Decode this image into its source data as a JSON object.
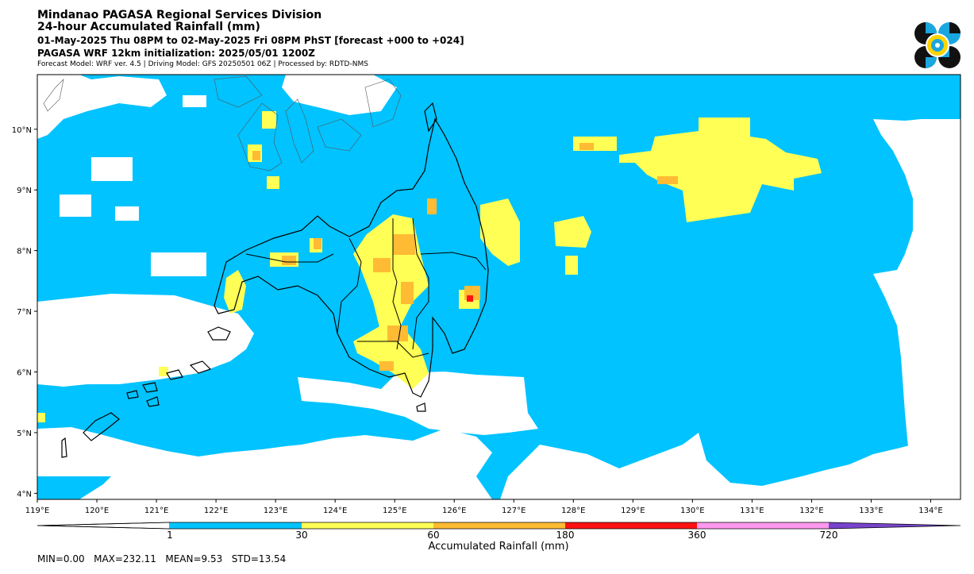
{
  "header": {
    "line1": "Mindanao PAGASA Regional Services Division",
    "line2": "24-hour Accumulated Rainfall (mm)",
    "line3": "01-May-2025 Thu 08PM to 02-May-2025 Fri 08PM PhST [forecast +000 to +024]",
    "line4": "PAGASA WRF 12km initialization: 2025/05/01 1200Z",
    "line5": "Forecast Model: WRF ver. 4.5 | Driving Model: GFS 20250501 06Z | Processed by: RDTD-NMS"
  },
  "map": {
    "lon_range": [
      119,
      134.5
    ],
    "lat_range": [
      3.9,
      10.9
    ],
    "lon_ticks": [
      "119°E",
      "120°E",
      "121°E",
      "122°E",
      "123°E",
      "124°E",
      "125°E",
      "126°E",
      "127°E",
      "128°E",
      "129°E",
      "130°E",
      "131°E",
      "132°E",
      "133°E",
      "134°E"
    ],
    "lat_ticks": [
      "4°N",
      "5°N",
      "6°N",
      "7°N",
      "8°N",
      "9°N",
      "10°N"
    ],
    "colors": {
      "ocean_rain": "#00c3ff",
      "no_rain": "#ffffff",
      "rain_30": "#ffff55",
      "rain_60": "#ffbb33",
      "rain_180": "#ff1111",
      "rain_360": "#ff99ee",
      "rain_720": "#7744cc"
    }
  },
  "colorbar": {
    "label": "Accumulated Rainfall (mm)",
    "ticks": [
      "1",
      "30",
      "60",
      "180",
      "360",
      "720"
    ]
  },
  "stats": {
    "text": "MIN=0.00   MAX=232.11   MEAN=9.53   STD=13.54"
  },
  "logo": {
    "icon": "pagasa-logo-icon"
  }
}
